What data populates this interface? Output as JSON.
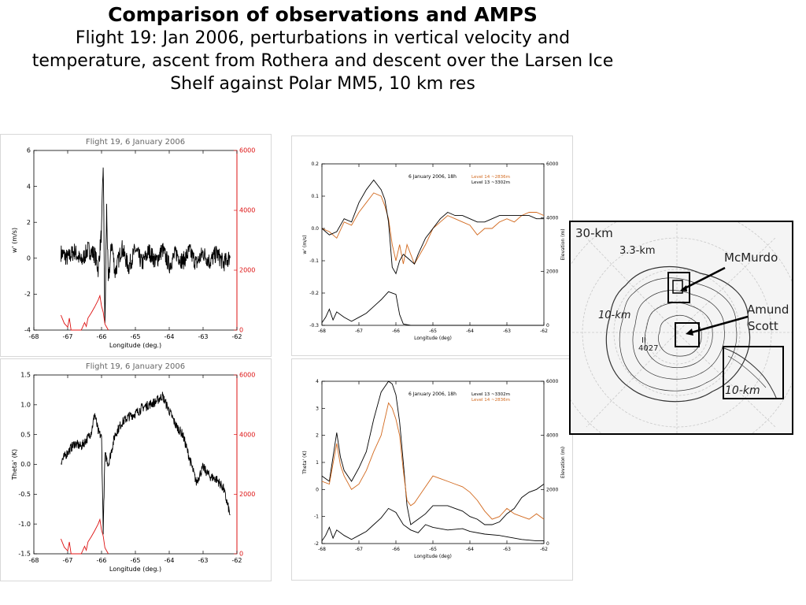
{
  "header": {
    "title": "Comparison of observations and AMPS",
    "subtitle": "Flight 19: Jan 2006, perturbations in vertical velocity and temperature, ascent from Rothera and descent over the Larsen Ice Shelf against Polar MM5, 10 km res"
  },
  "colors": {
    "obs": "#000000",
    "elev": "#dd1111",
    "level14": "#d2691e",
    "level13": "#000000",
    "axis_red": "#dd1111"
  },
  "chart_data": [
    {
      "id": "obs-w",
      "type": "line",
      "title": "Flight 19, 6 January 2006",
      "xlabel": "Longitude (deg.)",
      "ylabel": "w' (m/s)",
      "y2label": "",
      "xlim": [
        -68,
        -62
      ],
      "ylim": [
        -4,
        6
      ],
      "y2lim": [
        0,
        6000
      ],
      "xticks": [
        "-68",
        "-67",
        "-66",
        "-65",
        "-64",
        "-63",
        "-62"
      ],
      "yticks": [
        "-4",
        "-2",
        "0",
        "2",
        "4",
        "6"
      ],
      "y2ticks": [
        "0",
        "2000",
        "4000",
        "6000"
      ],
      "series": [
        {
          "x": [
            -67.2,
            -67.0,
            -66.8,
            -66.6,
            -66.4,
            -66.2,
            -66.1,
            -66.0,
            -65.95,
            -65.9,
            -65.85,
            -65.8,
            -65.7,
            -65.6,
            -65.4,
            -65.2,
            -65.0,
            -64.8,
            -64.6,
            -64.4,
            -64.2,
            -64.0,
            -63.8,
            -63.6,
            -63.4,
            -63.2,
            -63.0,
            -62.8,
            -62.6,
            -62.4,
            -62.2
          ],
          "y": [
            0.3,
            0.0,
            0.4,
            -0.2,
            0.5,
            0.2,
            -0.6,
            1.5,
            5.3,
            -4.0,
            2.8,
            -1.4,
            0.9,
            -0.8,
            0.6,
            -0.5,
            0.5,
            -0.3,
            0.4,
            -0.2,
            0.5,
            -0.4,
            0.3,
            -0.2,
            0.4,
            -0.3,
            0.3,
            -0.2,
            0.3,
            -0.3,
            0.1
          ],
          "noise": 0.5,
          "axis": "y"
        },
        {
          "x": [
            -67.2,
            -67.1,
            -67.0,
            -66.95,
            -66.9,
            -66.6,
            -66.5,
            -66.45,
            -66.4,
            -66.3,
            -66.2,
            -66.1,
            -66.05,
            -66.0,
            -65.95,
            -65.9,
            -65.8
          ],
          "y": [
            500,
            220,
            100,
            400,
            0,
            0,
            250,
            120,
            400,
            580,
            780,
            1000,
            1150,
            800,
            600,
            200,
            0
          ],
          "axis": "y2"
        }
      ]
    },
    {
      "id": "obs-theta",
      "type": "line",
      "title": "Flight 19, 6 January 2006",
      "xlabel": "Longitude (deg.)",
      "ylabel": "Theta' (K)",
      "y2label": "",
      "xlim": [
        -68,
        -62
      ],
      "ylim": [
        -1.5,
        1.5
      ],
      "y2lim": [
        0,
        6000
      ],
      "xticks": [
        "-68",
        "-67",
        "-66",
        "-65",
        "-64",
        "-63",
        "-62"
      ],
      "yticks": [
        "-1.5",
        "-1.0",
        "-0.5",
        "0.0",
        "0.5",
        "1.0",
        "1.5"
      ],
      "y2ticks": [
        "0",
        "2000",
        "4000",
        "6000"
      ],
      "series": [
        {
          "x": [
            -67.2,
            -67.0,
            -66.8,
            -66.6,
            -66.4,
            -66.3,
            -66.2,
            -66.1,
            -66.0,
            -65.95,
            -65.9,
            -65.85,
            -65.8,
            -65.6,
            -65.4,
            -65.2,
            -65.0,
            -64.8,
            -64.6,
            -64.4,
            -64.2,
            -64.0,
            -63.8,
            -63.6,
            -63.4,
            -63.2,
            -63.0,
            -62.8,
            -62.6,
            -62.4,
            -62.2
          ],
          "y": [
            0.05,
            0.2,
            0.35,
            0.3,
            0.45,
            0.55,
            0.85,
            0.55,
            0.45,
            -1.1,
            0.15,
            0.1,
            0.0,
            0.5,
            0.7,
            0.8,
            0.85,
            0.95,
            1.0,
            1.05,
            1.15,
            0.9,
            0.65,
            0.5,
            0.1,
            -0.3,
            -0.05,
            -0.2,
            -0.25,
            -0.4,
            -0.85
          ],
          "noise": 0.08,
          "axis": "y"
        },
        {
          "x": [
            -67.2,
            -67.1,
            -67.0,
            -66.95,
            -66.9,
            -66.6,
            -66.5,
            -66.45,
            -66.4,
            -66.3,
            -66.2,
            -66.1,
            -66.05,
            -66.0,
            -65.95,
            -65.9,
            -65.8
          ],
          "y": [
            500,
            220,
            100,
            400,
            0,
            0,
            250,
            120,
            400,
            580,
            780,
            1000,
            1150,
            800,
            600,
            200,
            0
          ],
          "axis": "y2"
        }
      ]
    },
    {
      "id": "model-w",
      "type": "line",
      "title": "6 January 2006, 18h",
      "xlabel": "Longitude (deg)",
      "ylabel": "w' (m/s)",
      "y2label": "Elevation (m)",
      "xlim": [
        -68,
        -62
      ],
      "ylim": [
        -0.3,
        0.2
      ],
      "y2lim": [
        0,
        6000
      ],
      "xticks": [
        "-68",
        "-67",
        "-66",
        "-65",
        "-64",
        "-63",
        "-62"
      ],
      "yticks": [
        "-0.3",
        "-0.2",
        "-0.1",
        "0.0",
        "0.1",
        "0.2"
      ],
      "y2ticks": [
        "0",
        "2000",
        "4000",
        "6000"
      ],
      "legend": [
        "Level 14 ~2836m",
        "Level 13 ~3302m"
      ],
      "legend_colors": [
        "#d2691e",
        "#000000"
      ],
      "series": [
        {
          "name": "Level 14 ~2836m",
          "axis": "y",
          "x": [
            -68,
            -67.8,
            -67.6,
            -67.4,
            -67.2,
            -67.0,
            -66.8,
            -66.6,
            -66.4,
            -66.3,
            -66.2,
            -66.1,
            -66.0,
            -65.9,
            -65.8,
            -65.7,
            -65.6,
            -65.5,
            -65.4,
            -65.2,
            -65.0,
            -64.8,
            -64.6,
            -64.4,
            -64.2,
            -64.0,
            -63.8,
            -63.6,
            -63.4,
            -63.2,
            -63.0,
            -62.8,
            -62.6,
            -62.4,
            -62.2,
            -62.0
          ],
          "y": [
            0.0,
            -0.01,
            -0.03,
            0.02,
            0.01,
            0.05,
            0.08,
            0.11,
            0.1,
            0.07,
            0.03,
            -0.05,
            -0.1,
            -0.05,
            -0.11,
            -0.05,
            -0.08,
            -0.11,
            -0.09,
            -0.05,
            0.0,
            0.02,
            0.04,
            0.03,
            0.02,
            0.01,
            -0.02,
            0.0,
            0.0,
            0.02,
            0.03,
            0.02,
            0.04,
            0.05,
            0.05,
            0.04
          ]
        },
        {
          "name": "Level 13 ~3302m",
          "axis": "y",
          "x": [
            -68,
            -67.8,
            -67.6,
            -67.4,
            -67.2,
            -67.0,
            -66.8,
            -66.6,
            -66.4,
            -66.3,
            -66.2,
            -66.1,
            -66.0,
            -65.9,
            -65.8,
            -65.7,
            -65.6,
            -65.5,
            -65.4,
            -65.2,
            -65.0,
            -64.8,
            -64.6,
            -64.4,
            -64.2,
            -64.0,
            -63.8,
            -63.6,
            -63.4,
            -63.2,
            -63.0,
            -62.8,
            -62.6,
            -62.4,
            -62.2,
            -62.0
          ],
          "y": [
            0.0,
            -0.02,
            -0.01,
            0.03,
            0.02,
            0.08,
            0.12,
            0.15,
            0.12,
            0.09,
            0.02,
            -0.12,
            -0.14,
            -0.1,
            -0.08,
            -0.09,
            -0.1,
            -0.11,
            -0.08,
            -0.03,
            0.0,
            0.03,
            0.05,
            0.04,
            0.04,
            0.03,
            0.02,
            0.02,
            0.03,
            0.04,
            0.04,
            0.04,
            0.04,
            0.04,
            0.03,
            0.03
          ]
        },
        {
          "name": "elevation",
          "axis": "y2",
          "x": [
            -68,
            -67.9,
            -67.8,
            -67.7,
            -67.6,
            -67.4,
            -67.2,
            -67.0,
            -66.8,
            -66.6,
            -66.4,
            -66.2,
            -66.0,
            -65.9,
            -65.8,
            -65.6,
            -65.0,
            -64.0,
            -63.0,
            -62.0
          ],
          "y": [
            100,
            300,
            600,
            200,
            500,
            300,
            150,
            300,
            450,
            700,
            950,
            1250,
            1150,
            400,
            50,
            0,
            0,
            0,
            0,
            0
          ]
        }
      ]
    },
    {
      "id": "model-theta",
      "type": "line",
      "title": "6 January 2006, 18h",
      "xlabel": "Longitude (deg)",
      "ylabel": "Theta' (K)",
      "y2label": "Elevation (m)",
      "xlim": [
        -68,
        -62
      ],
      "ylim": [
        -2,
        4
      ],
      "y2lim": [
        0,
        6000
      ],
      "xticks": [
        "-68",
        "-67",
        "-66",
        "-65",
        "-64",
        "-63",
        "-62"
      ],
      "yticks": [
        "-2",
        "-1",
        "0",
        "1",
        "2",
        "3",
        "4"
      ],
      "y2ticks": [
        "0",
        "2000",
        "4000",
        "6000"
      ],
      "legend": [
        "Level 13 ~3302m",
        "Level 14 ~2836m"
      ],
      "legend_colors": [
        "#000000",
        "#d2691e"
      ],
      "series": [
        {
          "name": "Level 13 ~3302m",
          "axis": "y",
          "x": [
            -68,
            -67.8,
            -67.6,
            -67.5,
            -67.4,
            -67.2,
            -67.0,
            -66.8,
            -66.6,
            -66.4,
            -66.2,
            -66.1,
            -66.0,
            -65.9,
            -65.8,
            -65.7,
            -65.6,
            -65.5,
            -65.4,
            -65.2,
            -65.0,
            -64.8,
            -64.6,
            -64.4,
            -64.2,
            -64.0,
            -63.8,
            -63.6,
            -63.4,
            -63.2,
            -63.0,
            -62.8,
            -62.6,
            -62.4,
            -62.2,
            -62.0
          ],
          "y": [
            0.5,
            0.3,
            2.1,
            1.2,
            0.7,
            0.3,
            0.8,
            1.4,
            2.6,
            3.6,
            4.0,
            3.9,
            3.5,
            2.5,
            1.0,
            -0.6,
            -1.3,
            -1.2,
            -1.1,
            -0.9,
            -0.6,
            -0.6,
            -0.6,
            -0.7,
            -0.8,
            -1.0,
            -1.1,
            -1.3,
            -1.3,
            -1.2,
            -0.9,
            -0.7,
            -0.3,
            -0.1,
            0.0,
            0.2
          ]
        },
        {
          "name": "Level 14 ~2836m",
          "axis": "y",
          "x": [
            -68,
            -67.8,
            -67.6,
            -67.5,
            -67.4,
            -67.2,
            -67.0,
            -66.8,
            -66.6,
            -66.4,
            -66.2,
            -66.1,
            -66.0,
            -65.9,
            -65.8,
            -65.7,
            -65.6,
            -65.5,
            -65.4,
            -65.2,
            -65.0,
            -64.8,
            -64.6,
            -64.4,
            -64.2,
            -64.0,
            -63.8,
            -63.6,
            -63.4,
            -63.2,
            -63.0,
            -62.8,
            -62.6,
            -62.4,
            -62.2,
            -62.0
          ],
          "y": [
            0.3,
            0.2,
            1.7,
            0.9,
            0.5,
            0.0,
            0.2,
            0.7,
            1.4,
            2.0,
            3.2,
            3.0,
            2.6,
            2.0,
            0.7,
            -0.4,
            -0.6,
            -0.5,
            -0.3,
            0.1,
            0.5,
            0.4,
            0.3,
            0.2,
            0.1,
            -0.1,
            -0.4,
            -0.8,
            -1.1,
            -1.0,
            -0.7,
            -0.9,
            -1.0,
            -1.1,
            -0.9,
            -1.1
          ]
        },
        {
          "name": "elevation",
          "axis": "y2",
          "x": [
            -68,
            -67.9,
            -67.8,
            -67.7,
            -67.6,
            -67.4,
            -67.2,
            -67.0,
            -66.8,
            -66.6,
            -66.4,
            -66.2,
            -66.0,
            -65.8,
            -65.6,
            -65.4,
            -65.2,
            -65.0,
            -64.6,
            -64.2,
            -64.0,
            -63.6,
            -63.2,
            -63.0,
            -62.6,
            -62.2,
            -62.0
          ],
          "y": [
            100,
            300,
            600,
            200,
            500,
            300,
            150,
            300,
            450,
            700,
            950,
            1300,
            1150,
            700,
            500,
            400,
            700,
            600,
            500,
            550,
            450,
            350,
            300,
            250,
            150,
            100,
            100
          ]
        }
      ]
    }
  ],
  "map": {
    "labels": {
      "res30": "30-km",
      "res33": "3.3-km",
      "res10a": "10-km",
      "res10b": "10-km",
      "mcmurdo": "McMurdo",
      "amund": "Amund",
      "scott": "Scott",
      "num_top": "II",
      "num_bot": "4027"
    }
  }
}
